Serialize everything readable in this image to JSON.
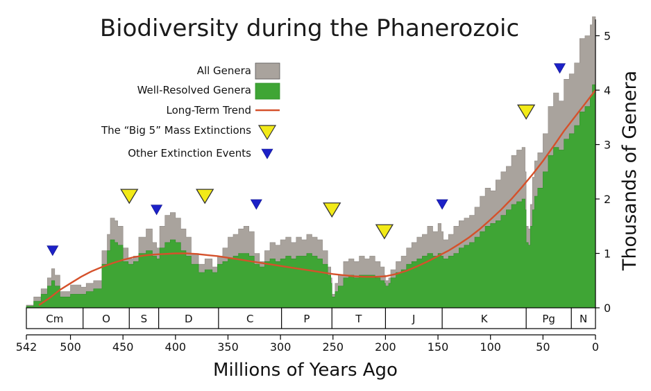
{
  "chart_data": {
    "type": "area",
    "title": "Biodiversity during the Phanerozoic",
    "xlabel": "Millions of Years Ago",
    "ylabel": "Thousands of Genera",
    "xlim": [
      542,
      0
    ],
    "ylim": [
      0,
      5.3
    ],
    "x_ticks": [
      542,
      500,
      450,
      400,
      350,
      300,
      250,
      200,
      150,
      100,
      50,
      0
    ],
    "y_ticks": [
      0,
      1,
      2,
      3,
      4,
      5
    ],
    "grid": false,
    "legend_position": "top-center",
    "legend": {
      "all": "All Genera",
      "well": "Well-Resolved Genera",
      "trend": "Long-Term Trend",
      "big5": "The “Big 5” Mass Extinctions",
      "other": "Other Extinction Events"
    },
    "colors": {
      "all": "#a9a39d",
      "well": "#3fa535",
      "trend": "#d5512b",
      "big5": "#f2ea17",
      "other": "#1c21c7"
    },
    "periods": [
      {
        "label": "Cm",
        "start": 542,
        "end": 488
      },
      {
        "label": "O",
        "start": 488,
        "end": 444
      },
      {
        "label": "S",
        "start": 444,
        "end": 416
      },
      {
        "label": "D",
        "start": 416,
        "end": 359
      },
      {
        "label": "C",
        "start": 359,
        "end": 299
      },
      {
        "label": "P",
        "start": 299,
        "end": 251
      },
      {
        "label": "T",
        "start": 251,
        "end": 200
      },
      {
        "label": "J",
        "start": 200,
        "end": 146
      },
      {
        "label": "K",
        "start": 146,
        "end": 66
      },
      {
        "label": "Pg",
        "start": 66,
        "end": 23
      },
      {
        "label": "N",
        "start": 23,
        "end": 0
      }
    ],
    "series": [
      {
        "name": "All Genera",
        "x": [
          542,
          535,
          528,
          522,
          518,
          515,
          510,
          500,
          490,
          485,
          478,
          470,
          465,
          462,
          458,
          455,
          450,
          445,
          440,
          435,
          428,
          422,
          418,
          415,
          410,
          405,
          400,
          395,
          390,
          385,
          378,
          372,
          365,
          360,
          355,
          350,
          345,
          340,
          335,
          330,
          325,
          320,
          315,
          310,
          305,
          300,
          295,
          290,
          285,
          280,
          275,
          270,
          265,
          260,
          255,
          252,
          251,
          248,
          245,
          240,
          235,
          230,
          225,
          220,
          215,
          210,
          205,
          201,
          200,
          197,
          195,
          190,
          185,
          180,
          175,
          170,
          165,
          160,
          155,
          150,
          147,
          145,
          140,
          135,
          130,
          125,
          120,
          115,
          110,
          105,
          100,
          95,
          90,
          85,
          80,
          75,
          70,
          67,
          66,
          64,
          62,
          60,
          58,
          55,
          50,
          45,
          40,
          35,
          30,
          25,
          20,
          15,
          10,
          5,
          3,
          0
        ],
        "values": [
          0.05,
          0.2,
          0.35,
          0.55,
          0.72,
          0.6,
          0.3,
          0.42,
          0.38,
          0.45,
          0.5,
          1.05,
          1.35,
          1.65,
          1.6,
          1.5,
          1.1,
          0.9,
          0.95,
          1.3,
          1.45,
          1.2,
          1.1,
          1.5,
          1.7,
          1.75,
          1.65,
          1.45,
          1.3,
          1.0,
          0.8,
          0.9,
          0.75,
          0.95,
          1.1,
          1.3,
          1.35,
          1.45,
          1.5,
          1.4,
          1.0,
          0.85,
          1.05,
          1.2,
          1.15,
          1.25,
          1.3,
          1.2,
          1.3,
          1.25,
          1.35,
          1.3,
          1.25,
          1.05,
          0.75,
          0.55,
          0.25,
          0.45,
          0.6,
          0.85,
          0.9,
          0.85,
          0.95,
          0.9,
          0.95,
          0.85,
          0.75,
          0.6,
          0.5,
          0.55,
          0.7,
          0.85,
          0.95,
          1.1,
          1.2,
          1.3,
          1.35,
          1.5,
          1.4,
          1.55,
          1.4,
          1.25,
          1.35,
          1.5,
          1.6,
          1.65,
          1.7,
          1.85,
          2.05,
          2.2,
          2.15,
          2.35,
          2.5,
          2.6,
          2.8,
          2.9,
          2.95,
          2.5,
          1.5,
          1.45,
          1.9,
          2.4,
          2.7,
          2.85,
          3.2,
          3.7,
          3.95,
          3.8,
          4.2,
          4.3,
          4.5,
          4.95,
          5.0,
          5.2,
          5.35,
          5.3
        ]
      },
      {
        "name": "Well-Resolved Genera",
        "x": [
          542,
          535,
          528,
          522,
          518,
          515,
          510,
          500,
          490,
          485,
          478,
          470,
          465,
          462,
          458,
          455,
          450,
          445,
          440,
          435,
          428,
          422,
          418,
          415,
          410,
          405,
          400,
          395,
          390,
          385,
          378,
          372,
          365,
          360,
          355,
          350,
          345,
          340,
          335,
          330,
          325,
          320,
          315,
          310,
          305,
          300,
          295,
          290,
          285,
          280,
          275,
          270,
          265,
          260,
          255,
          252,
          251,
          248,
          245,
          240,
          235,
          230,
          225,
          220,
          215,
          210,
          205,
          201,
          200,
          197,
          195,
          190,
          185,
          180,
          175,
          170,
          165,
          160,
          155,
          150,
          147,
          145,
          140,
          135,
          130,
          125,
          120,
          115,
          110,
          105,
          100,
          95,
          90,
          85,
          80,
          75,
          70,
          67,
          66,
          64,
          62,
          60,
          58,
          55,
          50,
          45,
          40,
          35,
          30,
          25,
          20,
          15,
          10,
          5,
          3,
          0
        ],
        "values": [
          0.03,
          0.12,
          0.25,
          0.4,
          0.5,
          0.4,
          0.2,
          0.25,
          0.25,
          0.3,
          0.35,
          0.8,
          1.05,
          1.25,
          1.2,
          1.15,
          0.85,
          0.8,
          0.85,
          1.0,
          1.05,
          0.95,
          0.9,
          1.1,
          1.2,
          1.25,
          1.2,
          1.05,
          0.95,
          0.8,
          0.65,
          0.7,
          0.65,
          0.8,
          0.85,
          0.9,
          0.95,
          1.0,
          1.0,
          0.95,
          0.8,
          0.75,
          0.85,
          0.9,
          0.85,
          0.9,
          0.95,
          0.9,
          0.95,
          0.95,
          1.0,
          0.95,
          0.9,
          0.8,
          0.6,
          0.45,
          0.2,
          0.3,
          0.4,
          0.55,
          0.6,
          0.55,
          0.6,
          0.6,
          0.6,
          0.55,
          0.5,
          0.45,
          0.4,
          0.45,
          0.55,
          0.65,
          0.7,
          0.8,
          0.85,
          0.9,
          0.95,
          1.0,
          0.95,
          1.0,
          0.95,
          0.9,
          0.95,
          1.0,
          1.1,
          1.15,
          1.2,
          1.3,
          1.4,
          1.5,
          1.55,
          1.6,
          1.7,
          1.8,
          1.9,
          1.95,
          2.0,
          1.8,
          1.2,
          1.15,
          1.5,
          1.8,
          2.05,
          2.2,
          2.5,
          2.8,
          2.95,
          2.9,
          3.1,
          3.2,
          3.35,
          3.6,
          3.7,
          3.9,
          4.1,
          4.15
        ]
      },
      {
        "name": "Long-Term Trend",
        "x": [
          530,
          520,
          510,
          500,
          490,
          480,
          470,
          460,
          450,
          440,
          430,
          420,
          410,
          400,
          390,
          380,
          370,
          360,
          350,
          340,
          330,
          320,
          310,
          300,
          290,
          280,
          270,
          260,
          250,
          240,
          230,
          220,
          210,
          200,
          190,
          180,
          170,
          160,
          150,
          140,
          130,
          120,
          110,
          100,
          90,
          80,
          70,
          60,
          50,
          40,
          30,
          20,
          10,
          0
        ],
        "values": [
          0.05,
          0.18,
          0.33,
          0.45,
          0.57,
          0.67,
          0.75,
          0.82,
          0.88,
          0.93,
          0.96,
          0.98,
          0.99,
          1.0,
          1.0,
          0.99,
          0.97,
          0.95,
          0.92,
          0.89,
          0.86,
          0.83,
          0.8,
          0.77,
          0.74,
          0.71,
          0.68,
          0.65,
          0.62,
          0.6,
          0.58,
          0.57,
          0.57,
          0.58,
          0.62,
          0.68,
          0.76,
          0.85,
          0.95,
          1.05,
          1.17,
          1.3,
          1.45,
          1.62,
          1.8,
          2.0,
          2.22,
          2.45,
          2.7,
          2.97,
          3.25,
          3.5,
          3.75,
          4.0
        ]
      }
    ],
    "big5_extinctions": [
      {
        "x": 444,
        "y": 2.05
      },
      {
        "x": 372,
        "y": 2.05
      },
      {
        "x": 251,
        "y": 1.8
      },
      {
        "x": 201,
        "y": 1.4
      },
      {
        "x": 66,
        "y": 3.6
      }
    ],
    "other_extinctions": [
      {
        "x": 517,
        "y": 1.05
      },
      {
        "x": 418,
        "y": 1.8
      },
      {
        "x": 323,
        "y": 1.9
      },
      {
        "x": 146,
        "y": 1.9
      },
      {
        "x": 34,
        "y": 4.4
      }
    ]
  }
}
